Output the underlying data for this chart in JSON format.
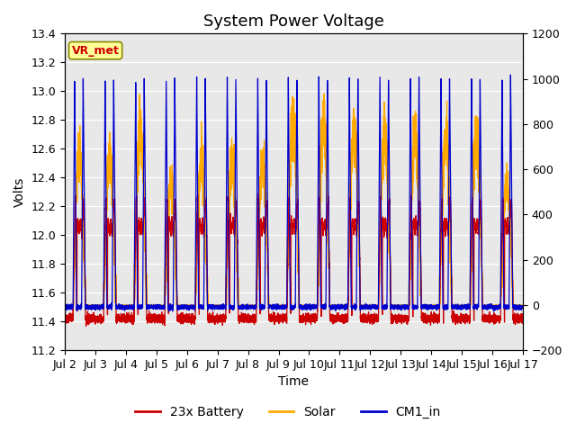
{
  "title": "System Power Voltage",
  "xlabel": "Time",
  "ylabel": "Volts",
  "xlim_days": [
    1,
    16
  ],
  "ylim_left": [
    11.2,
    13.4
  ],
  "ylim_right": [
    -200,
    1200
  ],
  "yticks_left": [
    11.2,
    11.4,
    11.6,
    11.8,
    12.0,
    12.2,
    12.4,
    12.6,
    12.8,
    13.0,
    13.2,
    13.4
  ],
  "yticks_right": [
    -200,
    0,
    200,
    400,
    600,
    800,
    1000,
    1200
  ],
  "xtick_labels": [
    "Jul 2",
    "Jul 3",
    "Jul 4",
    "Jul 5",
    "Jul 6",
    "Jul 7",
    "Jul 8",
    "Jul 9",
    "Jul 10",
    "Jul 11",
    "Jul 12",
    "Jul 13",
    "Jul 14",
    "Jul 15",
    "Jul 16",
    "Jul 17"
  ],
  "xtick_positions": [
    1,
    2,
    3,
    4,
    5,
    6,
    7,
    8,
    9,
    10,
    11,
    12,
    13,
    14,
    15,
    16
  ],
  "legend_labels": [
    "23x Battery",
    "Solar",
    "CM1_in"
  ],
  "legend_colors": [
    "#cc0000",
    "#ffaa00",
    "#0000cc"
  ],
  "battery_color": "#cc0000",
  "solar_color": "#ffaa00",
  "cm1_color": "#0000cc",
  "vr_box_facecolor": "#ffff99",
  "vr_box_edgecolor": "#888800",
  "vr_text_color": "#cc0000",
  "background_plot": "#e8e8e8",
  "grid_color": "#ffffff",
  "title_fontsize": 13,
  "label_fontsize": 10,
  "tick_fontsize": 9,
  "legend_fontsize": 10
}
